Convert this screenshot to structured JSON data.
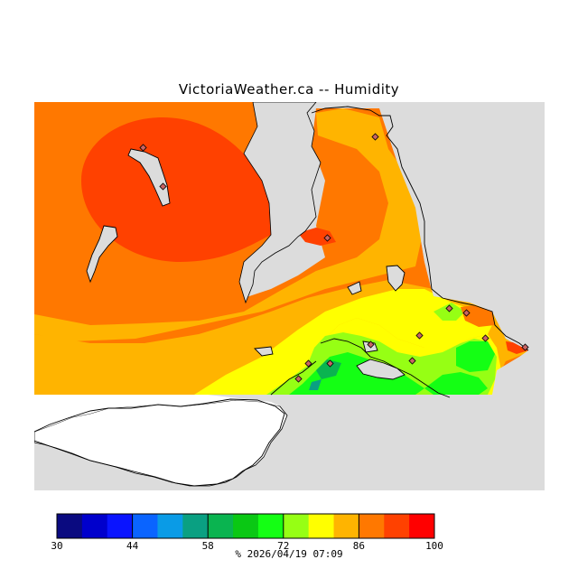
{
  "header": {
    "title": "VictoriaWeather.ca -- Humidity"
  },
  "legend": {
    "colors": [
      "#0a0a80",
      "#0000cc",
      "#0a14ff",
      "#0a64ff",
      "#0a9be6",
      "#0aa082",
      "#0ab450",
      "#0ac814",
      "#14ff14",
      "#96ff14",
      "#ffff00",
      "#ffb400",
      "#ff7800",
      "#ff4100",
      "#ff0000"
    ],
    "ticks": [
      "30",
      "44",
      "58",
      "72",
      "86",
      "100"
    ],
    "unit": "%",
    "timestamp": "2026/04/19 07:09"
  },
  "map": {
    "land_color": "#dcdcdc",
    "water_color": "#ffffff",
    "outline_color": "#000000"
  }
}
